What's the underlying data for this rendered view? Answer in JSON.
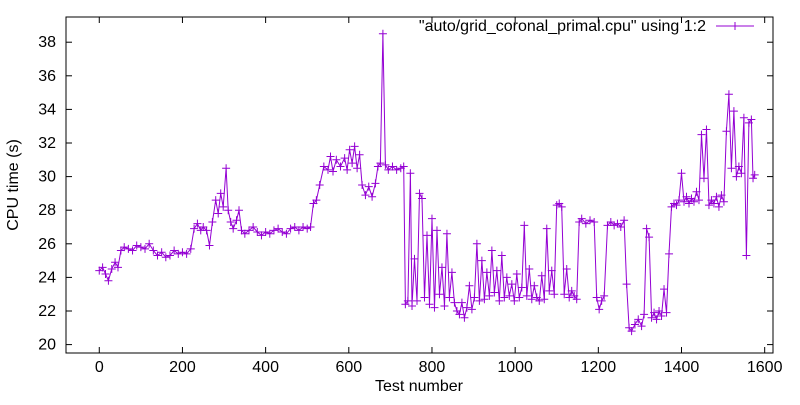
{
  "chart_data": {
    "type": "line",
    "title": "",
    "xlabel": "Test number",
    "ylabel": "CPU time (s)",
    "xlim": [
      -80,
      1620
    ],
    "ylim": [
      19.5,
      39.5
    ],
    "x_ticks": [
      0,
      200,
      400,
      600,
      800,
      1000,
      1200,
      1400,
      1600
    ],
    "y_ticks": [
      20,
      22,
      24,
      26,
      28,
      30,
      32,
      34,
      36,
      38
    ],
    "grid": false,
    "legend_position": "top-right",
    "marker": "plus",
    "series": [
      {
        "name": "\"auto/grid_coronal_primal.cpu\" using 1:2",
        "color": "#9400d3",
        "points": [
          [
            0,
            24.4
          ],
          [
            8,
            24.6
          ],
          [
            15,
            24.2
          ],
          [
            22,
            23.8
          ],
          [
            30,
            24.5
          ],
          [
            38,
            24.9
          ],
          [
            45,
            24.6
          ],
          [
            52,
            25.6
          ],
          [
            60,
            25.8
          ],
          [
            70,
            25.7
          ],
          [
            80,
            25.6
          ],
          [
            90,
            25.9
          ],
          [
            100,
            25.8
          ],
          [
            110,
            25.7
          ],
          [
            120,
            26.0
          ],
          [
            130,
            25.6
          ],
          [
            140,
            25.3
          ],
          [
            150,
            25.5
          ],
          [
            160,
            25.2
          ],
          [
            170,
            25.3
          ],
          [
            180,
            25.6
          ],
          [
            190,
            25.4
          ],
          [
            200,
            25.5
          ],
          [
            210,
            25.4
          ],
          [
            220,
            25.7
          ],
          [
            228,
            26.9
          ],
          [
            236,
            27.2
          ],
          [
            244,
            26.8
          ],
          [
            250,
            27.0
          ],
          [
            258,
            26.8
          ],
          [
            265,
            25.9
          ],
          [
            272,
            27.3
          ],
          [
            280,
            28.6
          ],
          [
            286,
            27.8
          ],
          [
            292,
            29.0
          ],
          [
            298,
            28.2
          ],
          [
            305,
            30.5
          ],
          [
            310,
            28.0
          ],
          [
            316,
            27.3
          ],
          [
            322,
            26.9
          ],
          [
            330,
            27.4
          ],
          [
            336,
            28.0
          ],
          [
            342,
            26.8
          ],
          [
            350,
            26.6
          ],
          [
            360,
            26.8
          ],
          [
            370,
            27.0
          ],
          [
            380,
            26.7
          ],
          [
            390,
            26.5
          ],
          [
            400,
            26.7
          ],
          [
            410,
            26.6
          ],
          [
            420,
            26.8
          ],
          [
            430,
            26.9
          ],
          [
            440,
            26.7
          ],
          [
            450,
            26.6
          ],
          [
            460,
            26.9
          ],
          [
            470,
            27.0
          ],
          [
            480,
            26.8
          ],
          [
            490,
            27.0
          ],
          [
            500,
            26.9
          ],
          [
            508,
            27.0
          ],
          [
            515,
            28.4
          ],
          [
            522,
            28.6
          ],
          [
            530,
            29.5
          ],
          [
            540,
            30.6
          ],
          [
            550,
            30.4
          ],
          [
            556,
            31.2
          ],
          [
            562,
            30.3
          ],
          [
            570,
            31.0
          ],
          [
            580,
            30.6
          ],
          [
            590,
            31.1
          ],
          [
            596,
            30.4
          ],
          [
            602,
            31.6
          ],
          [
            608,
            30.8
          ],
          [
            614,
            31.8
          ],
          [
            620,
            30.5
          ],
          [
            626,
            31.3
          ],
          [
            632,
            29.5
          ],
          [
            640,
            28.9
          ],
          [
            648,
            29.4
          ],
          [
            656,
            28.8
          ],
          [
            664,
            29.6
          ],
          [
            670,
            30.6
          ],
          [
            676,
            30.8
          ],
          [
            682,
            38.5
          ],
          [
            688,
            30.7
          ],
          [
            695,
            30.4
          ],
          [
            705,
            30.6
          ],
          [
            715,
            30.4
          ],
          [
            725,
            30.5
          ],
          [
            732,
            30.6
          ],
          [
            736,
            22.4
          ],
          [
            742,
            22.6
          ],
          [
            748,
            30.2
          ],
          [
            752,
            22.3
          ],
          [
            758,
            25.1
          ],
          [
            764,
            22.6
          ],
          [
            770,
            29.0
          ],
          [
            776,
            28.7
          ],
          [
            782,
            22.8
          ],
          [
            788,
            26.5
          ],
          [
            794,
            22.4
          ],
          [
            800,
            27.5
          ],
          [
            806,
            22.2
          ],
          [
            812,
            26.8
          ],
          [
            818,
            23.0
          ],
          [
            824,
            24.6
          ],
          [
            830,
            22.3
          ],
          [
            836,
            26.6
          ],
          [
            842,
            22.8
          ],
          [
            848,
            24.3
          ],
          [
            854,
            22.5
          ],
          [
            860,
            22.0
          ],
          [
            866,
            21.8
          ],
          [
            872,
            22.5
          ],
          [
            878,
            21.6
          ],
          [
            884,
            22.2
          ],
          [
            890,
            23.5
          ],
          [
            896,
            22.1
          ],
          [
            902,
            22.8
          ],
          [
            908,
            26.0
          ],
          [
            914,
            22.6
          ],
          [
            920,
            25.0
          ],
          [
            926,
            22.7
          ],
          [
            932,
            24.3
          ],
          [
            938,
            22.9
          ],
          [
            944,
            25.6
          ],
          [
            950,
            23.1
          ],
          [
            956,
            24.4
          ],
          [
            962,
            22.6
          ],
          [
            968,
            25.3
          ],
          [
            974,
            22.8
          ],
          [
            980,
            24.0
          ],
          [
            986,
            22.9
          ],
          [
            992,
            23.6
          ],
          [
            998,
            22.6
          ],
          [
            1004,
            24.2
          ],
          [
            1010,
            22.8
          ],
          [
            1016,
            23.4
          ],
          [
            1022,
            27.1
          ],
          [
            1028,
            22.9
          ],
          [
            1034,
            24.5
          ],
          [
            1040,
            22.7
          ],
          [
            1046,
            23.5
          ],
          [
            1052,
            22.8
          ],
          [
            1058,
            22.6
          ],
          [
            1064,
            24.1
          ],
          [
            1070,
            22.7
          ],
          [
            1076,
            26.9
          ],
          [
            1082,
            23.2
          ],
          [
            1088,
            24.4
          ],
          [
            1094,
            23.0
          ],
          [
            1100,
            28.3
          ],
          [
            1106,
            28.4
          ],
          [
            1112,
            28.2
          ],
          [
            1118,
            23.0
          ],
          [
            1124,
            24.5
          ],
          [
            1130,
            22.8
          ],
          [
            1136,
            23.2
          ],
          [
            1142,
            22.9
          ],
          [
            1148,
            22.7
          ],
          [
            1154,
            27.3
          ],
          [
            1160,
            27.5
          ],
          [
            1170,
            27.2
          ],
          [
            1180,
            27.4
          ],
          [
            1190,
            27.3
          ],
          [
            1196,
            22.8
          ],
          [
            1202,
            22.1
          ],
          [
            1208,
            22.6
          ],
          [
            1214,
            22.9
          ],
          [
            1222,
            27.1
          ],
          [
            1230,
            27.3
          ],
          [
            1238,
            27.1
          ],
          [
            1246,
            27.2
          ],
          [
            1254,
            27.0
          ],
          [
            1262,
            27.4
          ],
          [
            1268,
            23.6
          ],
          [
            1274,
            21.0
          ],
          [
            1280,
            20.8
          ],
          [
            1288,
            21.2
          ],
          [
            1296,
            21.5
          ],
          [
            1304,
            21.1
          ],
          [
            1310,
            21.8
          ],
          [
            1316,
            26.9
          ],
          [
            1322,
            26.4
          ],
          [
            1328,
            21.6
          ],
          [
            1334,
            21.9
          ],
          [
            1340,
            21.5
          ],
          [
            1346,
            22.0
          ],
          [
            1352,
            21.7
          ],
          [
            1358,
            23.3
          ],
          [
            1364,
            21.9
          ],
          [
            1370,
            25.4
          ],
          [
            1376,
            28.2
          ],
          [
            1382,
            28.4
          ],
          [
            1388,
            28.3
          ],
          [
            1394,
            28.6
          ],
          [
            1400,
            30.2
          ],
          [
            1406,
            28.5
          ],
          [
            1412,
            28.8
          ],
          [
            1418,
            28.4
          ],
          [
            1424,
            28.7
          ],
          [
            1430,
            28.5
          ],
          [
            1436,
            29.1
          ],
          [
            1442,
            28.6
          ],
          [
            1448,
            32.5
          ],
          [
            1454,
            29.9
          ],
          [
            1460,
            32.8
          ],
          [
            1466,
            28.3
          ],
          [
            1472,
            28.6
          ],
          [
            1478,
            28.4
          ],
          [
            1484,
            28.8
          ],
          [
            1490,
            28.2
          ],
          [
            1496,
            28.9
          ],
          [
            1502,
            28.5
          ],
          [
            1508,
            32.7
          ],
          [
            1514,
            34.9
          ],
          [
            1520,
            30.5
          ],
          [
            1526,
            33.9
          ],
          [
            1532,
            30.0
          ],
          [
            1538,
            30.6
          ],
          [
            1544,
            30.2
          ],
          [
            1550,
            33.5
          ],
          [
            1556,
            25.3
          ],
          [
            1562,
            33.2
          ],
          [
            1568,
            33.4
          ],
          [
            1572,
            29.9
          ],
          [
            1576,
            30.1
          ]
        ]
      }
    ]
  }
}
